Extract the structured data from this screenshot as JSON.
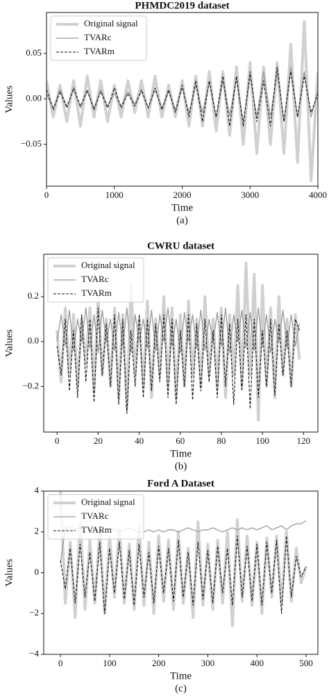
{
  "chart_data": [
    {
      "type": "line",
      "title": "PHMDC2019 dataset",
      "x_label": "Time",
      "y_label": "Values",
      "caption": "(a)",
      "x": [
        0,
        100,
        200,
        300,
        400,
        500,
        600,
        700,
        800,
        900,
        1000,
        1100,
        1200,
        1300,
        1400,
        1500,
        1600,
        1700,
        1800,
        1900,
        2000,
        2100,
        2200,
        2300,
        2400,
        2500,
        2600,
        2700,
        2800,
        2900,
        3000,
        3100,
        3200,
        3300,
        3400,
        3500,
        3600,
        3700,
        3800,
        3900,
        4000
      ],
      "xlim": [
        0,
        4000
      ],
      "ylim": [
        -0.096,
        0.095
      ],
      "xticks": [
        0,
        1000,
        2000,
        3000,
        4000
      ],
      "yticks": [
        {
          "value": -0.05,
          "label": "−0.05"
        },
        {
          "value": 0,
          "label": "0.00"
        },
        {
          "value": 0.05,
          "label": "0.05"
        }
      ],
      "legend": "upper left",
      "series": [
        {
          "name": "Original signal",
          "color": "#d0d0d0",
          "values": [
            0.02,
            -0.02,
            0.015,
            -0.025,
            0.02,
            -0.03,
            0.025,
            -0.02,
            0.02,
            -0.025,
            0.015,
            -0.02,
            0.02,
            -0.015,
            0.02,
            -0.02,
            0.025,
            -0.02,
            0.015,
            -0.02,
            0.02,
            -0.03,
            0.025,
            -0.03,
            0.03,
            -0.035,
            0.03,
            -0.04,
            0.035,
            -0.05,
            0.04,
            -0.06,
            0.035,
            -0.05,
            0.04,
            -0.06,
            0.06,
            -0.07,
            0.085,
            -0.09,
            0.03
          ]
        },
        {
          "name": "TVARc",
          "color": "#999999",
          "values": [
            0.005,
            -0.01,
            0.01,
            -0.008,
            0.01,
            -0.01,
            0.008,
            -0.01,
            0.01,
            -0.008,
            0.006,
            -0.008,
            0.008,
            -0.006,
            0.008,
            -0.01,
            0.01,
            -0.01,
            0.008,
            -0.012,
            0.012,
            -0.015,
            0.015,
            -0.015,
            0.018,
            -0.02,
            0.02,
            -0.018,
            0.022,
            -0.025,
            0.025,
            -0.02,
            0.03,
            -0.02,
            0.03,
            -0.025,
            0.035,
            -0.02,
            0.03,
            -0.02,
            0.01
          ]
        },
        {
          "name": "TVARm",
          "color": "#111111",
          "values": [
            0.01,
            -0.012,
            0.008,
            -0.01,
            0.012,
            -0.008,
            0.01,
            -0.012,
            0.008,
            -0.01,
            0.012,
            -0.01,
            0.006,
            -0.008,
            0.01,
            -0.01,
            0.012,
            -0.012,
            0.01,
            -0.015,
            0.015,
            -0.02,
            0.02,
            -0.025,
            0.02,
            -0.02,
            0.025,
            -0.03,
            0.025,
            -0.03,
            0.03,
            -0.025,
            0.02,
            -0.03,
            0.035,
            -0.025,
            0.03,
            -0.02,
            0.025,
            -0.015,
            0.005
          ]
        }
      ]
    },
    {
      "type": "line",
      "title": "CWRU dataset",
      "x_label": "Time",
      "y_label": "Values",
      "caption": "(b)",
      "x": [
        0,
        2,
        4,
        6,
        8,
        10,
        12,
        14,
        16,
        18,
        20,
        22,
        24,
        26,
        28,
        30,
        32,
        34,
        36,
        38,
        40,
        42,
        44,
        46,
        48,
        50,
        52,
        54,
        56,
        58,
        60,
        62,
        64,
        66,
        68,
        70,
        72,
        74,
        76,
        78,
        80,
        82,
        84,
        86,
        88,
        90,
        92,
        94,
        96,
        98,
        100,
        102,
        104,
        106,
        108,
        110,
        112,
        114,
        116,
        118
      ],
      "xlim": [
        -6.5,
        127
      ],
      "ylim": [
        -0.403,
        0.389
      ],
      "xticks": [
        0,
        20,
        40,
        60,
        80,
        100,
        120
      ],
      "yticks": [
        {
          "value": -0.2,
          "label": "−0.2"
        },
        {
          "value": 0,
          "label": "0.0"
        },
        {
          "value": 0.2,
          "label": "0.2"
        }
      ],
      "legend": "upper left",
      "series": [
        {
          "name": "Original signal",
          "color": "#d0d0d0",
          "values": [
            0.05,
            -0.18,
            0.15,
            -0.15,
            0.12,
            -0.2,
            0.1,
            -0.1,
            0.15,
            -0.22,
            0.2,
            -0.15,
            0.1,
            -0.2,
            0.15,
            -0.25,
            0.12,
            -0.3,
            0.25,
            -0.15,
            0.1,
            -0.2,
            0.18,
            -0.25,
            0.1,
            -0.15,
            0.2,
            -0.2,
            0.15,
            -0.25,
            0.12,
            -0.2,
            0.18,
            -0.15,
            0.1,
            -0.2,
            0.2,
            -0.15,
            0.1,
            -0.2,
            0.15,
            -0.25,
            0.12,
            -0.15,
            0.25,
            -0.2,
            0.35,
            -0.15,
            0.3,
            -0.35,
            0.25,
            -0.2,
            0.15,
            -0.25,
            0.2,
            -0.15,
            0.1,
            -0.2,
            0.12,
            -0.08
          ]
        },
        {
          "name": "TVARc",
          "color": "#999999",
          "values": [
            0.0,
            0.12,
            -0.02,
            0.14,
            -0.04,
            0.1,
            0.0,
            0.15,
            -0.03,
            0.12,
            -0.05,
            0.14,
            0.0,
            0.1,
            -0.04,
            0.13,
            -0.02,
            0.15,
            -0.05,
            0.12,
            0.0,
            0.1,
            -0.03,
            0.14,
            -0.04,
            0.12,
            0.0,
            0.15,
            -0.02,
            0.1,
            -0.05,
            0.13,
            0.0,
            0.12,
            -0.03,
            0.14,
            -0.04,
            0.1,
            0.0,
            0.13,
            -0.02,
            0.15,
            -0.05,
            0.12,
            0.0,
            0.14,
            -0.03,
            0.13,
            -0.04,
            0.15,
            -0.02,
            0.12,
            -0.05,
            0.1,
            0.0,
            0.14,
            -0.03,
            0.12,
            -0.02,
            0.08
          ]
        },
        {
          "name": "TVARm",
          "color": "#111111",
          "values": [
            -0.02,
            -0.15,
            0.1,
            -0.22,
            0.05,
            -0.25,
            0.12,
            -0.18,
            0.1,
            -0.27,
            0.15,
            -0.15,
            0.08,
            -0.2,
            0.12,
            -0.28,
            0.1,
            -0.32,
            0.05,
            -0.2,
            0.12,
            -0.25,
            0.1,
            -0.22,
            0.08,
            -0.18,
            0.12,
            -0.25,
            0.1,
            -0.28,
            0.05,
            -0.2,
            0.12,
            -0.26,
            0.08,
            -0.22,
            0.1,
            -0.18,
            0.05,
            -0.25,
            0.12,
            -0.2,
            0.08,
            -0.28,
            0.1,
            -0.22,
            0.12,
            -0.3,
            0.1,
            -0.25,
            0.05,
            -0.2,
            0.1,
            -0.24,
            0.08,
            -0.15,
            0.05,
            -0.2,
            0.1,
            0.05
          ]
        }
      ]
    },
    {
      "type": "line",
      "title": "Ford A Dataset",
      "x_label": "Time",
      "y_label": "Values",
      "caption": "(c)",
      "x": [
        0,
        10,
        20,
        30,
        40,
        50,
        60,
        70,
        80,
        90,
        100,
        110,
        120,
        130,
        140,
        150,
        160,
        170,
        180,
        190,
        200,
        210,
        220,
        230,
        240,
        250,
        260,
        270,
        280,
        290,
        300,
        310,
        320,
        330,
        340,
        350,
        360,
        370,
        380,
        390,
        400,
        410,
        420,
        430,
        440,
        450,
        460,
        470,
        480,
        490,
        500
      ],
      "xlim": [
        -34,
        524
      ],
      "ylim": [
        -4,
        4
      ],
      "xticks": [
        0,
        100,
        200,
        300,
        400,
        500
      ],
      "yticks": [
        {
          "value": -4,
          "label": "−4"
        },
        {
          "value": -2,
          "label": "−2"
        },
        0,
        2,
        4
      ],
      "legend": "upper left",
      "series": [
        {
          "name": "Original signal",
          "color": "#d0d0d0",
          "values": [
            4.0,
            -1.5,
            1.5,
            -2.2,
            2.5,
            -1.8,
            1.6,
            -1.5,
            2.0,
            -2.0,
            1.8,
            -1.2,
            2.2,
            -1.5,
            1.4,
            -1.8,
            2.3,
            -1.6,
            1.5,
            -2.0,
            1.8,
            -1.4,
            1.6,
            -1.8,
            2.0,
            -1.5,
            1.2,
            -2.2,
            2.5,
            -1.6,
            1.4,
            -1.8,
            1.6,
            -1.5,
            2.0,
            -2.6,
            2.6,
            -1.4,
            1.8,
            -1.6,
            1.5,
            -2.0,
            1.7,
            -1.2,
            1.8,
            -1.5,
            2.0,
            -1.4,
            1.2,
            -0.5,
            0.3
          ]
        },
        {
          "name": "TVARc",
          "color": "#999999",
          "values": [
            0.5,
            2.2,
            2.3,
            2.1,
            2.2,
            2.0,
            2.1,
            2.2,
            2.0,
            2.1,
            2.2,
            2.1,
            2.0,
            2.1,
            2.2,
            2.1,
            2.0,
            2.0,
            2.1,
            2.0,
            2.1,
            2.0,
            2.1,
            2.1,
            2.0,
            2.1,
            2.2,
            2.1,
            2.0,
            2.1,
            2.1,
            2.2,
            2.1,
            2.0,
            2.1,
            2.2,
            2.1,
            2.2,
            2.1,
            2.2,
            2.1,
            2.2,
            2.3,
            2.1,
            2.2,
            2.3,
            2.1,
            2.3,
            2.4,
            2.4,
            2.55
          ]
        },
        {
          "name": "TVARm",
          "color": "#111111",
          "values": [
            0.6,
            -0.8,
            1.2,
            -1.5,
            1.4,
            -1.2,
            1.0,
            -1.4,
            1.5,
            -2.0,
            1.2,
            -1.0,
            1.5,
            -1.3,
            1.1,
            -1.6,
            1.4,
            -1.2,
            1.0,
            -1.5,
            1.3,
            -1.0,
            1.2,
            -1.4,
            1.6,
            -1.2,
            1.0,
            -1.6,
            1.5,
            -1.3,
            1.1,
            -1.5,
            1.3,
            -1.0,
            1.2,
            -1.6,
            1.8,
            -1.2,
            1.3,
            -1.4,
            1.4,
            -1.6,
            1.5,
            -1.0,
            1.6,
            -2.0,
            1.8,
            -1.2,
            0.8,
            -0.2,
            0.3
          ]
        }
      ]
    }
  ]
}
